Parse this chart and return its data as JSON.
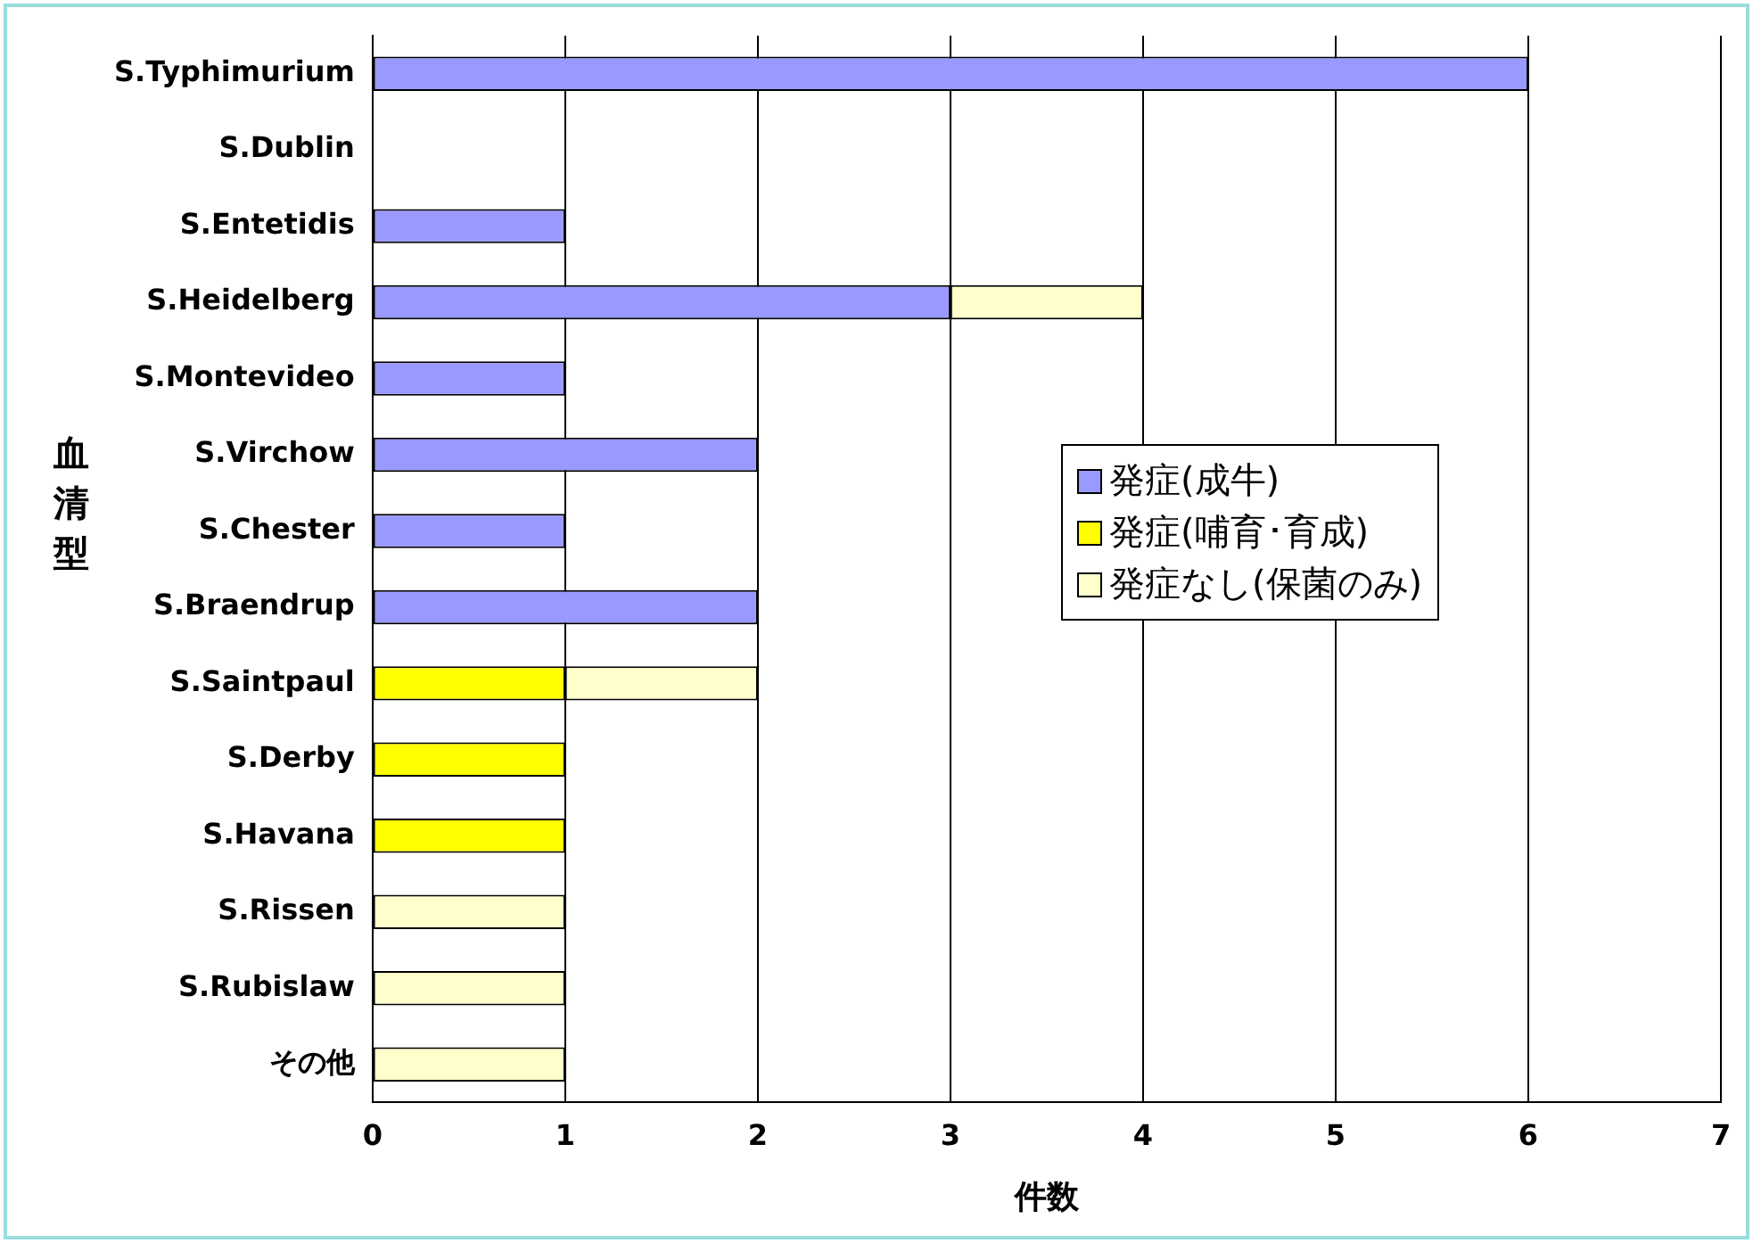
{
  "chart_data": {
    "type": "bar",
    "orientation": "horizontal",
    "stacked": true,
    "xlabel": "件数",
    "ylabel": "血清型",
    "categories": [
      "S.Typhimurium",
      "S.Dublin",
      "S.Entetidis",
      "S.Heidelberg",
      "S.Montevideo",
      "S.Virchow",
      "S.Chester",
      "S.Braendrup",
      "S.Saintpaul",
      "S.Derby",
      "S.Havana",
      "S.Rissen",
      "S.Rubislaw",
      "その他"
    ],
    "series": [
      {
        "name": "発症(成牛)",
        "color": "#9999ff",
        "values": [
          6,
          null,
          1,
          3,
          1,
          2,
          1,
          2,
          null,
          null,
          null,
          null,
          null,
          null
        ]
      },
      {
        "name": "発症(哺育･育成)",
        "color": "#ffff00",
        "values": [
          null,
          null,
          null,
          null,
          null,
          null,
          null,
          null,
          1,
          1,
          1,
          null,
          null,
          null
        ]
      },
      {
        "name": "発症なし(保菌のみ)",
        "color": "#ffffcc",
        "values": [
          null,
          null,
          null,
          1,
          null,
          null,
          null,
          null,
          1,
          null,
          null,
          1,
          1,
          1
        ]
      }
    ],
    "xlim": [
      0,
      7
    ],
    "xticks": [
      0,
      1,
      2,
      3,
      4,
      5,
      6,
      7
    ],
    "grid": "x",
    "legend": "right"
  }
}
